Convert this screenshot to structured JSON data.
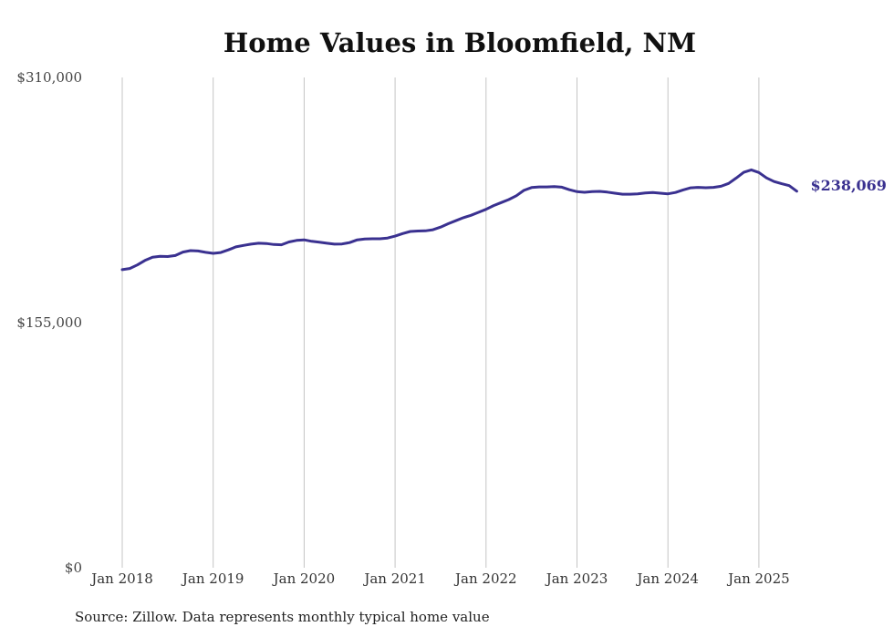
{
  "chart_data": {
    "type": "line",
    "title": "Home Values in Bloomfield, NM",
    "xlabel": "",
    "ylabel": "",
    "ylim": [
      0,
      310000
    ],
    "y_ticks": [
      "$0",
      "$155,000",
      "$310,000"
    ],
    "x_ticks": [
      "Jan 2018",
      "Jan 2019",
      "Jan 2020",
      "Jan 2021",
      "Jan 2022",
      "Jan 2023",
      "Jan 2024",
      "Jan 2025"
    ],
    "grid": "vertical",
    "line_color": "#3a3190",
    "end_label": "$238,069",
    "series": [
      {
        "x": [
          "2018-01",
          "2018-02",
          "2018-03",
          "2018-04",
          "2018-05",
          "2018-06",
          "2018-07",
          "2018-08",
          "2018-09",
          "2018-10",
          "2018-11",
          "2018-12",
          "2019-01",
          "2019-02",
          "2019-03",
          "2019-04",
          "2019-05",
          "2019-06",
          "2019-07",
          "2019-08",
          "2019-09",
          "2019-10",
          "2019-11",
          "2019-12",
          "2020-01",
          "2020-02",
          "2020-03",
          "2020-04",
          "2020-05",
          "2020-06",
          "2020-07",
          "2020-08",
          "2020-09",
          "2020-10",
          "2020-11",
          "2020-12",
          "2021-01",
          "2021-02",
          "2021-03",
          "2021-04",
          "2021-05",
          "2021-06",
          "2021-07",
          "2021-08",
          "2021-09",
          "2021-10",
          "2021-11",
          "2021-12",
          "2022-01",
          "2022-02",
          "2022-03",
          "2022-04",
          "2022-05",
          "2022-06",
          "2022-07",
          "2022-08",
          "2022-09",
          "2022-10",
          "2022-11",
          "2022-12",
          "2023-01",
          "2023-02",
          "2023-03",
          "2023-04",
          "2023-05",
          "2023-06",
          "2023-07",
          "2023-08",
          "2023-09",
          "2023-10",
          "2023-11",
          "2023-12",
          "2024-01",
          "2024-02",
          "2024-03",
          "2024-04",
          "2024-05",
          "2024-06",
          "2024-07",
          "2024-08",
          "2024-09",
          "2024-10",
          "2024-11",
          "2024-12",
          "2025-01",
          "2025-02",
          "2025-03",
          "2025-04",
          "2025-05",
          "2025-06"
        ],
        "values": [
          188500,
          189200,
          191500,
          194300,
          196300,
          196900,
          196800,
          197400,
          199600,
          200500,
          200300,
          199400,
          198800,
          199300,
          201000,
          202900,
          203800,
          204600,
          205200,
          205000,
          204400,
          204200,
          206000,
          207000,
          207300,
          206400,
          205800,
          205200,
          204600,
          204700,
          205600,
          207300,
          207900,
          208000,
          208000,
          208500,
          209700,
          211300,
          212600,
          212900,
          213000,
          213700,
          215400,
          217500,
          219400,
          221300,
          222800,
          224700,
          226600,
          229000,
          230900,
          232800,
          235200,
          238600,
          240400,
          240800,
          240800,
          241000,
          240600,
          239000,
          237800,
          237400,
          237800,
          238000,
          237500,
          236800,
          236200,
          236200,
          236400,
          237000,
          237200,
          236800,
          236400,
          237300,
          238900,
          240200,
          240500,
          240300,
          240500,
          241200,
          243000,
          246400,
          250000,
          251600,
          249900,
          246500,
          244200,
          242800,
          241600,
          238069
        ]
      }
    ]
  },
  "source_note": "Source: Zillow. Data represents monthly typical home value"
}
